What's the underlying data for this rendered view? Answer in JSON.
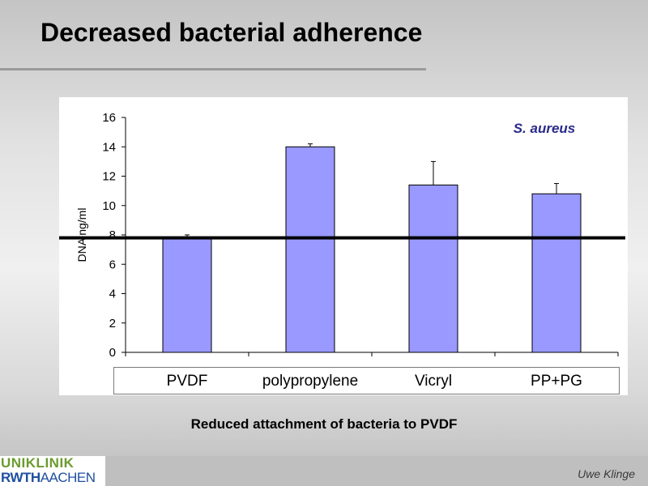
{
  "slide": {
    "title": "Decreased bacterial adherence",
    "caption": "Reduced attachment of bacteria to PVDF",
    "author": "Uwe Klinge"
  },
  "logo": {
    "line1": "UNIKLINIK",
    "line2_part1": "RWTH",
    "line2_part2": "AACHEN"
  },
  "colors": {
    "bar_fill": "#9999ff",
    "annotation": "#2a2a8a",
    "logo_green": "#6b9b2f",
    "logo_blue": "#1f4fa0"
  },
  "chart_data": {
    "type": "bar",
    "categories": [
      "PVDF",
      "polypropylene",
      "Vicryl",
      "PP+PG"
    ],
    "values": [
      7.8,
      14.0,
      11.4,
      10.8
    ],
    "error_upper": [
      0.2,
      0.2,
      1.6,
      0.7
    ],
    "ylabel": "DNA ng/ml",
    "xlabel": "",
    "ylim": [
      0,
      16
    ],
    "yticks": [
      0,
      2,
      4,
      6,
      8,
      10,
      12,
      14,
      16
    ],
    "annotation": "S. aureus",
    "reference_line": 7.8,
    "grid": false
  }
}
